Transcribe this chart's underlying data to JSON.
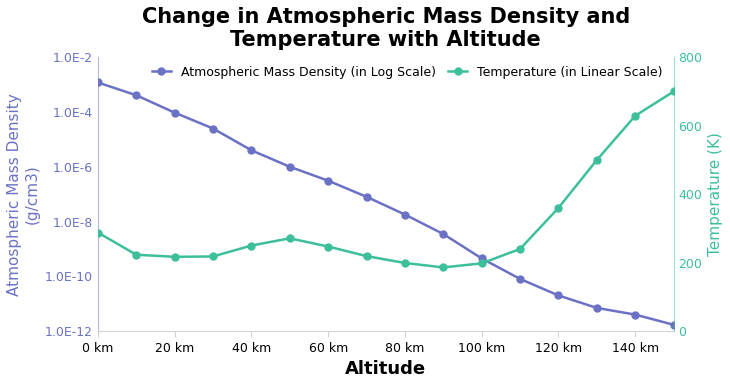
{
  "title": "Change in Atmospheric Mass Density and\nTemperature with Altitude",
  "xlabel": "Altitude",
  "ylabel_left": "Atmospheric Mass Density\n(g/cm3)",
  "ylabel_right": "Temperature (K)",
  "legend_density": "Atmospheric Mass Density (in Log Scale)",
  "legend_temp": "Temperature (in Linear Scale)",
  "altitude_km": [
    0,
    10,
    20,
    30,
    40,
    50,
    60,
    70,
    80,
    90,
    100,
    110,
    120,
    130,
    140,
    150
  ],
  "density": [
    0.0012,
    0.00041,
    9.5e-05,
    2.5e-05,
    4e-06,
    1e-06,
    3.1e-07,
    8e-08,
    1.8e-08,
    3.5e-09,
    4.5e-10,
    8e-11,
    2e-11,
    7e-12,
    4e-12,
    1.7e-12
  ],
  "temperature": [
    288,
    223,
    217,
    218,
    250,
    271,
    247,
    219,
    199,
    186,
    198,
    240,
    360,
    500,
    629,
    700
  ],
  "density_color": "#6b72c5",
  "temp_color": "#3dbf9c",
  "ylim_density": [
    1e-12,
    0.01
  ],
  "ylim_temp": [
    0,
    800
  ],
  "xtick_labels": [
    "0 km",
    "20 km",
    "40 km",
    "60 km",
    "80 km",
    "100 km",
    "120 km",
    "140 km"
  ],
  "xtick_positions": [
    0,
    20,
    40,
    60,
    80,
    100,
    120,
    140
  ],
  "title_fontsize": 15,
  "axis_label_fontsize": 11,
  "tick_fontsize": 9,
  "legend_fontsize": 9,
  "line_width": 1.8,
  "marker": "o",
  "marker_size": 5,
  "background_color": "#ffffff",
  "ytick_labels_density": [
    "1.0E-12",
    "1.0E-10",
    "1.0E-8",
    "1.0E-6",
    "1.0E-4",
    "1.0E-2"
  ],
  "ytick_positions_density": [
    1e-12,
    1e-10,
    1e-08,
    1e-06,
    0.0001,
    0.01
  ],
  "ytick_labels_temp": [
    "0",
    "200",
    "400",
    "600",
    "800"
  ],
  "ytick_positions_temp": [
    0,
    200,
    400,
    600,
    800
  ]
}
